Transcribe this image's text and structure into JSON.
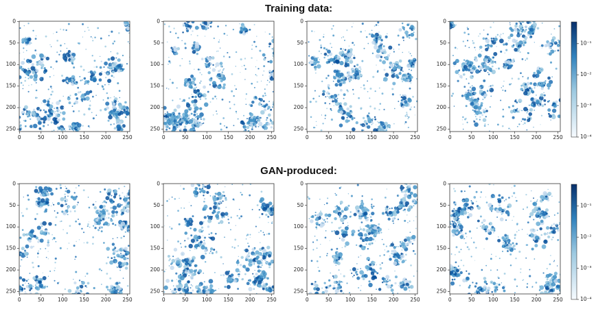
{
  "sections": [
    {
      "title": "Training data:"
    },
    {
      "title": "GAN-produced:"
    }
  ],
  "axes": {
    "xlim": [
      -0.5,
      255.5
    ],
    "ylim": [
      -0.5,
      255.5
    ],
    "xticks": [
      0,
      50,
      100,
      150,
      200,
      250
    ],
    "yticks": [
      0,
      50,
      100,
      150,
      200,
      250
    ]
  },
  "colorbar": {
    "log": true,
    "lim": [
      0.0001,
      0.5
    ],
    "color": "#08306b",
    "ticks": [
      {
        "value": 0.0001,
        "label": "10⁻⁴"
      },
      {
        "value": 0.001,
        "label": "10⁻³"
      },
      {
        "value": 0.01,
        "label": "10⁻²"
      },
      {
        "value": 0.1,
        "label": "10⁻¹"
      }
    ]
  }
}
